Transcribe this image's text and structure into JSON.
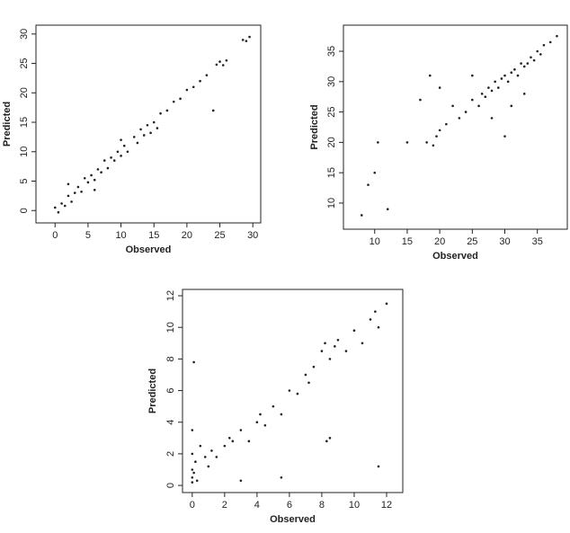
{
  "chart_data": [
    {
      "type": "scatter",
      "xlabel": "Observed",
      "ylabel": "Predicted",
      "color": "#222222",
      "xlim": [
        -2.9,
        31.2
      ],
      "ylim": [
        -2.1,
        31.5
      ],
      "xticks": [
        0,
        5,
        10,
        15,
        20,
        25,
        30
      ],
      "yticks": [
        0,
        5,
        10,
        15,
        20,
        25,
        30
      ],
      "x": [
        0,
        0.5,
        1,
        1.5,
        2,
        2.5,
        3,
        3.5,
        4,
        4.5,
        5,
        5.5,
        6,
        6.5,
        7,
        7.5,
        8,
        8.5,
        9,
        9.5,
        10,
        10.5,
        11,
        12,
        12.5,
        13,
        13.5,
        14,
        14.5,
        15,
        15.5,
        16,
        17,
        18,
        19,
        20,
        21,
        22,
        23,
        24.5,
        25,
        25.5,
        26,
        28.5,
        29,
        29.5,
        24,
        2,
        6,
        10
      ],
      "values": [
        0.5,
        -0.3,
        1.2,
        0.8,
        2.5,
        1.5,
        3,
        4,
        3.2,
        5.5,
        4.8,
        6,
        5.2,
        7,
        6.5,
        8.5,
        7.2,
        9,
        8.5,
        10,
        9.3,
        11,
        10,
        12.5,
        11.5,
        13.8,
        12.8,
        14.5,
        13.2,
        15,
        14,
        16.5,
        17,
        18.5,
        19,
        20.5,
        21,
        22,
        23,
        24.8,
        25.3,
        24.7,
        25.5,
        29,
        28.8,
        29.5,
        17,
        4.5,
        3.5,
        12
      ]
    },
    {
      "type": "scatter",
      "xlabel": "Observed",
      "ylabel": "Predicted",
      "color": "#222222",
      "xlim": [
        5.2,
        39.6
      ],
      "ylim": [
        5.7,
        39.3
      ],
      "xticks": [
        10,
        15,
        20,
        25,
        30,
        35
      ],
      "yticks": [
        10,
        15,
        20,
        25,
        30,
        35
      ],
      "x": [
        8,
        9,
        10,
        10.5,
        12,
        15,
        17,
        18,
        18.5,
        19,
        19.5,
        20,
        21,
        22,
        23,
        24,
        25,
        26,
        26.5,
        27,
        27.5,
        28,
        28.5,
        29,
        29.5,
        30,
        30.5,
        31,
        31.5,
        32,
        32.5,
        33,
        33.5,
        34,
        34.5,
        35,
        35.5,
        36,
        37,
        38,
        30,
        28,
        25,
        20,
        33,
        31
      ],
      "values": [
        8,
        13,
        15,
        20,
        9,
        20,
        27,
        20,
        31,
        19.5,
        21,
        22,
        23,
        26,
        24,
        25,
        27,
        26,
        28,
        27.5,
        29,
        28.5,
        30,
        29,
        30.5,
        31,
        30,
        31.5,
        32,
        31,
        33,
        32.5,
        33,
        34,
        33.5,
        35,
        34.5,
        36,
        36.5,
        37.5,
        21,
        24,
        31,
        29,
        28,
        26
      ]
    },
    {
      "type": "scatter",
      "xlabel": "Observed",
      "ylabel": "Predicted",
      "color": "#222222",
      "xlim": [
        -0.6,
        13
      ],
      "ylim": [
        -0.45,
        12.4
      ],
      "xticks": [
        0,
        2,
        4,
        6,
        8,
        10,
        12
      ],
      "yticks": [
        0,
        2,
        4,
        6,
        8,
        10,
        12
      ],
      "x": [
        0,
        0,
        0,
        0,
        0,
        0.1,
        0.2,
        0.3,
        0.5,
        0.8,
        1,
        1.2,
        1.5,
        2,
        2.3,
        2.5,
        3,
        3.5,
        4,
        4.2,
        4.5,
        5,
        5.5,
        6,
        6.5,
        7,
        7.2,
        7.5,
        8,
        8.2,
        8.5,
        8.8,
        9,
        9.5,
        10,
        10.5,
        11,
        11.3,
        11.5,
        12,
        8.5,
        8.3,
        0.1,
        5.5,
        11.5,
        3
      ],
      "values": [
        0.2,
        0.5,
        1,
        2,
        3.5,
        0.8,
        1.5,
        0.3,
        2.5,
        1.8,
        1.2,
        2.2,
        1.8,
        2.5,
        3,
        2.8,
        3.5,
        2.8,
        4,
        4.5,
        3.8,
        5,
        4.5,
        6,
        5.8,
        7,
        6.5,
        7.5,
        8.5,
        9,
        8,
        8.8,
        9.2,
        8.5,
        9.8,
        9,
        10.5,
        11,
        10,
        11.5,
        3,
        2.8,
        7.8,
        0.5,
        1.2,
        0.3
      ]
    }
  ]
}
